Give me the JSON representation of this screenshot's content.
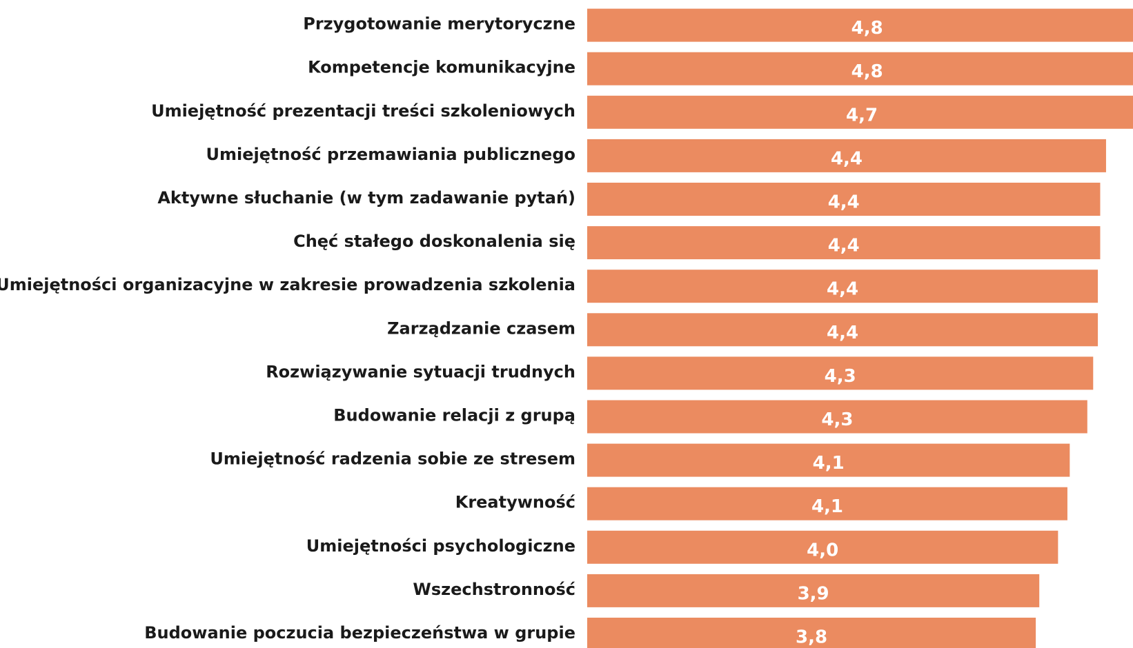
{
  "chart_data": {
    "type": "barh",
    "categories": [
      "Przygotowanie merytoryczne",
      "Kompetencje komunikacyjne",
      "Umiejętność prezentacji treści szkoleniowych",
      "Umiejętność przemawiania publicznego",
      "Aktywne słuchanie (w tym zadawanie pytań)",
      "Chęć stałego doskonalenia się",
      "Umiejętności organizacyjne w zakresie prowadzenia szkolenia",
      "Zarządzanie czasem",
      "Rozwiązywanie sytuacji trudnych",
      "Budowanie relacji z grupą",
      "Umiejętność radzenia sobie ze stresem",
      "Kreatywność",
      "Umiejętności psychologiczne",
      "Wszechstronność",
      "Budowanie poczucia bezpieczeństwa w grupie"
    ],
    "values": [
      4.78,
      4.78,
      4.69,
      4.43,
      4.38,
      4.38,
      4.36,
      4.36,
      4.32,
      4.27,
      4.12,
      4.1,
      4.02,
      3.86,
      3.83
    ],
    "value_labels": [
      "4,8",
      "4,8",
      "4,7",
      "4,4",
      "4,4",
      "4,4",
      "4,4",
      "4,4",
      "4,3",
      "4,3",
      "4,1",
      "4,1",
      "4,0",
      "3,9",
      "3,8"
    ],
    "color": "#eb8b60",
    "xlim": [
      0,
      4.66
    ]
  }
}
